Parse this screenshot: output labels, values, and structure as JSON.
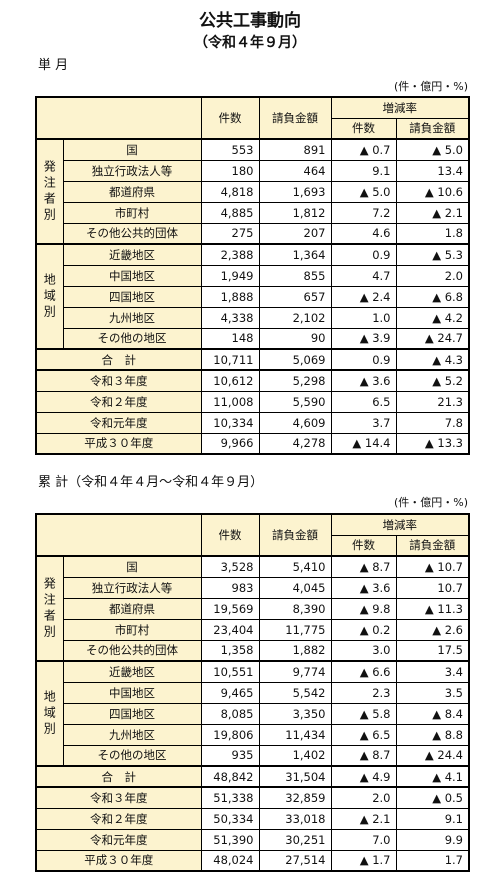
{
  "header": {
    "title": "公共工事動向",
    "subtitle": "（令和４年９月）"
  },
  "sections": [
    {
      "label": "単 月",
      "unit": "(件・億円・%)",
      "table": {
        "columns": {
          "count": "件数",
          "amount": "請負金額",
          "change": "増減率",
          "change_count": "件数",
          "change_amount": "請負金額"
        },
        "groups": [
          {
            "label": "発注者別",
            "rows": [
              [
                "国",
                "553",
                "891",
                "▲ 0.7",
                "▲ 5.0"
              ],
              [
                "独立行政法人等",
                "180",
                "464",
                "9.1",
                "13.4"
              ],
              [
                "都道府県",
                "4,818",
                "1,693",
                "▲ 5.0",
                "▲ 10.6"
              ],
              [
                "市町村",
                "4,885",
                "1,812",
                "7.2",
                "▲ 2.1"
              ],
              [
                "その他公共的団体",
                "275",
                "207",
                "4.6",
                "1.8"
              ]
            ]
          },
          {
            "label": "地域別",
            "rows": [
              [
                "近畿地区",
                "2,388",
                "1,364",
                "0.9",
                "▲ 5.3"
              ],
              [
                "中国地区",
                "1,949",
                "855",
                "4.7",
                "2.0"
              ],
              [
                "四国地区",
                "1,888",
                "657",
                "▲ 2.4",
                "▲ 6.8"
              ],
              [
                "九州地区",
                "4,338",
                "2,102",
                "1.0",
                "▲ 4.2"
              ],
              [
                "その他の地区",
                "148",
                "90",
                "▲ 3.9",
                "▲ 24.7"
              ]
            ]
          }
        ],
        "total": [
          "合　計",
          "10,711",
          "5,069",
          "0.9",
          "▲ 4.3"
        ],
        "history": [
          [
            "令和３年度",
            "10,612",
            "5,298",
            "▲ 3.6",
            "▲ 5.2"
          ],
          [
            "令和２年度",
            "11,008",
            "5,590",
            "6.5",
            "21.3"
          ],
          [
            "令和元年度",
            "10,334",
            "4,609",
            "3.7",
            "7.8"
          ],
          [
            "平成３０年度",
            "9,966",
            "4,278",
            "▲ 14.4",
            "▲ 13.3"
          ]
        ]
      }
    },
    {
      "label": "累 計（令和４年４月～令和４年９月）",
      "unit": "(件・億円・%)",
      "table": {
        "columns": {
          "count": "件数",
          "amount": "請負金額",
          "change": "増減率",
          "change_count": "件数",
          "change_amount": "請負金額"
        },
        "groups": [
          {
            "label": "発注者別",
            "rows": [
              [
                "国",
                "3,528",
                "5,410",
                "▲ 8.7",
                "▲ 10.7"
              ],
              [
                "独立行政法人等",
                "983",
                "4,045",
                "▲ 3.6",
                "10.7"
              ],
              [
                "都道府県",
                "19,569",
                "8,390",
                "▲ 9.8",
                "▲ 11.3"
              ],
              [
                "市町村",
                "23,404",
                "11,775",
                "▲ 0.2",
                "▲ 2.6"
              ],
              [
                "その他公共的団体",
                "1,358",
                "1,882",
                "3.0",
                "17.5"
              ]
            ]
          },
          {
            "label": "地域別",
            "rows": [
              [
                "近畿地区",
                "10,551",
                "9,774",
                "▲ 6.6",
                "3.4"
              ],
              [
                "中国地区",
                "9,465",
                "5,542",
                "2.3",
                "3.5"
              ],
              [
                "四国地区",
                "8,085",
                "3,350",
                "▲ 5.8",
                "▲ 8.4"
              ],
              [
                "九州地区",
                "19,806",
                "11,434",
                "▲ 6.5",
                "▲ 8.8"
              ],
              [
                "その他の地区",
                "935",
                "1,402",
                "▲ 8.7",
                "▲ 24.4"
              ]
            ]
          }
        ],
        "total": [
          "合　計",
          "48,842",
          "31,504",
          "▲ 4.9",
          "▲ 4.1"
        ],
        "history": [
          [
            "令和３年度",
            "51,338",
            "32,859",
            "2.0",
            "▲ 0.5"
          ],
          [
            "令和２年度",
            "50,334",
            "33,018",
            "▲ 2.1",
            "9.1"
          ],
          [
            "令和元年度",
            "51,390",
            "30,251",
            "7.0",
            "9.9"
          ],
          [
            "平成３０年度",
            "48,024",
            "27,514",
            "▲ 1.7",
            "1.7"
          ]
        ]
      }
    }
  ]
}
